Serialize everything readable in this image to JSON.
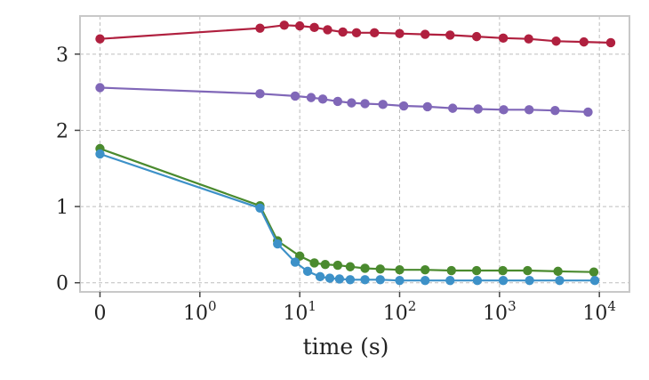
{
  "chart_data": {
    "type": "line",
    "xlabel": "time (s)",
    "ylabel": "",
    "xscale": "symlog",
    "xlim": [
      -0.2,
      20000
    ],
    "ylim": [
      -0.12,
      3.5
    ],
    "grid": true,
    "grid_style": "dashed",
    "x_ticks": [
      {
        "value": 0,
        "label": "0"
      },
      {
        "value": 1,
        "label": "10",
        "exp": "0"
      },
      {
        "value": 10,
        "label": "10",
        "exp": "1"
      },
      {
        "value": 100,
        "label": "10",
        "exp": "2"
      },
      {
        "value": 1000,
        "label": "10",
        "exp": "3"
      },
      {
        "value": 10000,
        "label": "10",
        "exp": "4"
      }
    ],
    "y_ticks": [
      {
        "value": 0,
        "label": "0"
      },
      {
        "value": 1,
        "label": "1"
      },
      {
        "value": 2,
        "label": "2"
      },
      {
        "value": 3,
        "label": "3"
      }
    ],
    "series": [
      {
        "color": "#b0203f",
        "x": [
          0,
          4,
          7,
          10,
          14,
          19,
          27,
          37,
          56,
          100,
          180,
          320,
          590,
          1090,
          1960,
          3690,
          7000,
          13000
        ],
        "y": [
          3.2,
          3.34,
          3.38,
          3.37,
          3.35,
          3.32,
          3.29,
          3.28,
          3.28,
          3.27,
          3.26,
          3.25,
          3.23,
          3.21,
          3.2,
          3.17,
          3.16,
          3.15
        ]
      },
      {
        "color": "#8067b8",
        "x": [
          0,
          4,
          9,
          13,
          17,
          24,
          33,
          45,
          68,
          110,
          190,
          340,
          610,
          1100,
          1980,
          3600,
          7700
        ],
        "y": [
          2.56,
          2.48,
          2.45,
          2.43,
          2.41,
          2.38,
          2.36,
          2.35,
          2.34,
          2.32,
          2.31,
          2.29,
          2.28,
          2.27,
          2.27,
          2.26,
          2.24
        ]
      },
      {
        "color": "#4a8a2e",
        "x": [
          0,
          4,
          6,
          10,
          14,
          18,
          24,
          32,
          45,
          64,
          100,
          180,
          330,
          590,
          1080,
          1910,
          3850,
          8800
        ],
        "y": [
          1.76,
          1.01,
          0.55,
          0.35,
          0.26,
          0.24,
          0.23,
          0.21,
          0.19,
          0.18,
          0.17,
          0.17,
          0.16,
          0.16,
          0.16,
          0.16,
          0.15,
          0.14
        ]
      },
      {
        "color": "#3d91c8",
        "x": [
          0,
          4,
          6,
          9,
          12,
          16,
          20,
          25,
          32,
          45,
          64,
          100,
          180,
          320,
          600,
          1090,
          2000,
          4000,
          9000
        ],
        "y": [
          1.69,
          0.98,
          0.51,
          0.27,
          0.15,
          0.08,
          0.06,
          0.05,
          0.04,
          0.04,
          0.04,
          0.03,
          0.03,
          0.03,
          0.03,
          0.03,
          0.03,
          0.03,
          0.03
        ]
      }
    ]
  }
}
